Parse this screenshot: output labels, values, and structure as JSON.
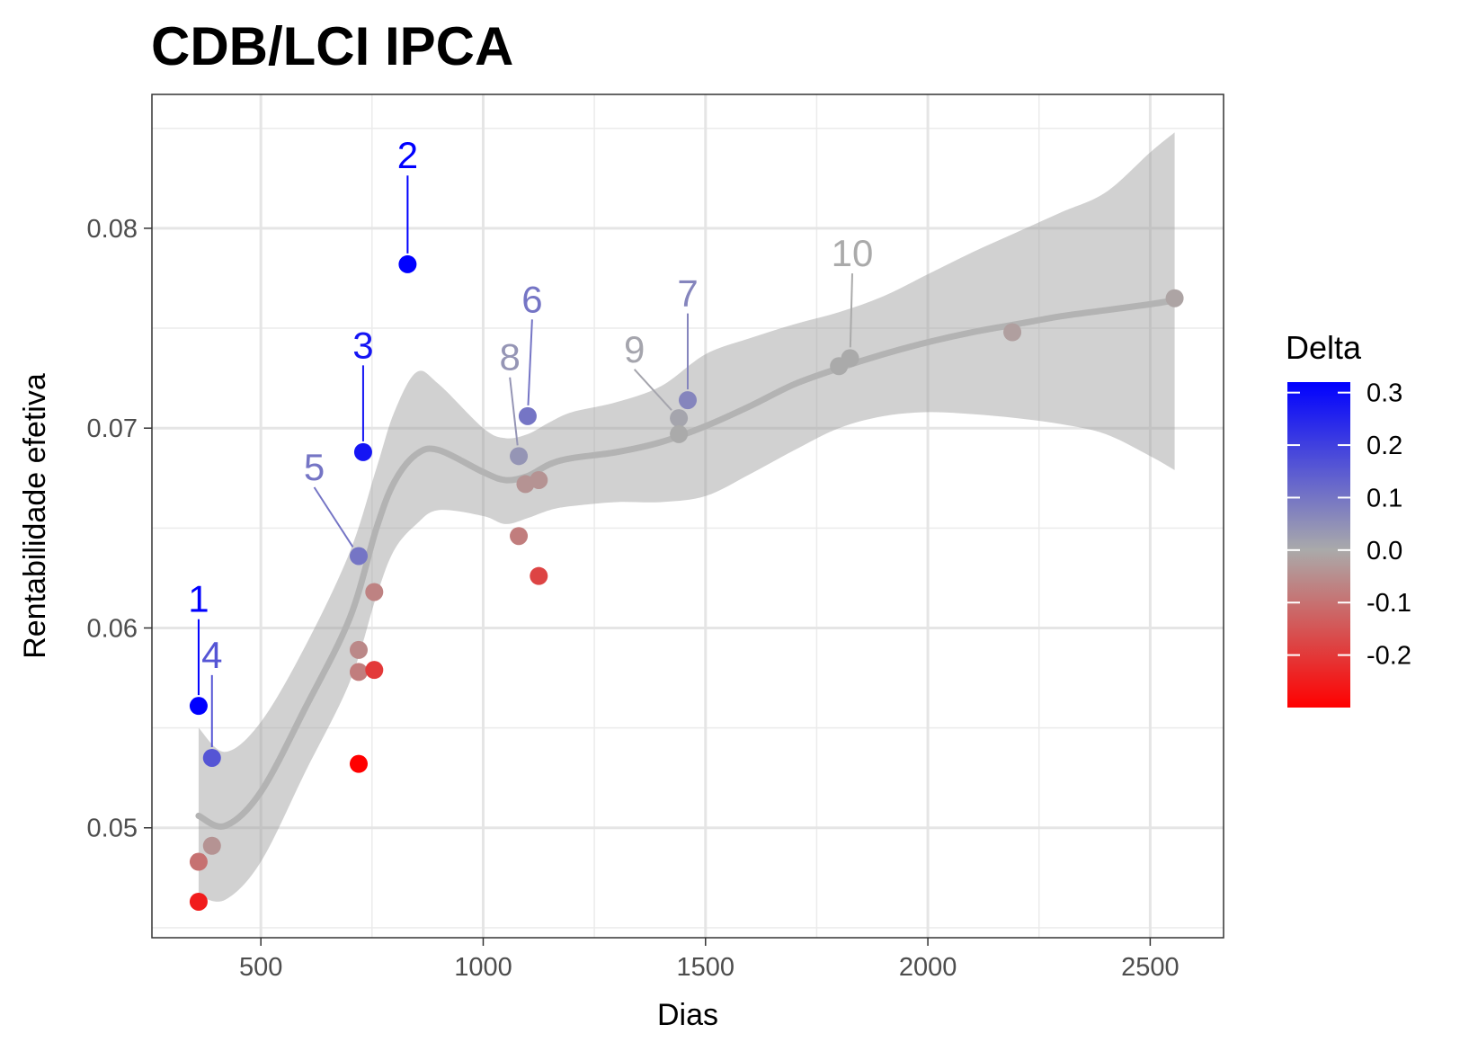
{
  "chart_data": {
    "type": "scatter",
    "title": "CDB/LCI IPCA",
    "xlabel": "Dias",
    "ylabel": "Rentabilidade efetiva",
    "xlim": [
      255,
      2665
    ],
    "ylim": [
      0.0445,
      0.0867
    ],
    "x_ticks": [
      500,
      1000,
      1500,
      2000,
      2500
    ],
    "y_ticks": [
      0.05,
      0.06,
      0.07,
      0.08
    ],
    "x_tick_labels": [
      "500",
      "1000",
      "1500",
      "2000",
      "2500"
    ],
    "y_tick_labels": [
      "0.05",
      "0.06",
      "0.07",
      "0.08"
    ],
    "grid": true,
    "legend": {
      "title": "Delta",
      "placement": "right",
      "range": [
        -0.3,
        0.32
      ],
      "ticks": [
        0.3,
        0.2,
        0.1,
        0.0,
        -0.1,
        -0.2
      ],
      "tick_labels": [
        "0.3",
        "0.2",
        "0.1",
        "0.0",
        "-0.1",
        "-0.2"
      ],
      "colors": {
        "low": "#ff0000",
        "mid": "#aaaaaa",
        "high": "#0000ff"
      }
    },
    "points": [
      {
        "x": 360,
        "y": 0.0561,
        "delta": 0.32
      },
      {
        "x": 830,
        "y": 0.0782,
        "delta": 0.32
      },
      {
        "x": 730,
        "y": 0.0688,
        "delta": 0.28
      },
      {
        "x": 390,
        "y": 0.0535,
        "delta": 0.16
      },
      {
        "x": 720,
        "y": 0.0636,
        "delta": 0.1
      },
      {
        "x": 1100,
        "y": 0.0706,
        "delta": 0.1
      },
      {
        "x": 1460,
        "y": 0.0714,
        "delta": 0.07
      },
      {
        "x": 1080,
        "y": 0.0686,
        "delta": 0.04
      },
      {
        "x": 1440,
        "y": 0.0705,
        "delta": 0.01
      },
      {
        "x": 1825,
        "y": 0.0735,
        "delta": 0.0
      },
      {
        "x": 1440,
        "y": 0.0697,
        "delta": 0.0
      },
      {
        "x": 1800,
        "y": 0.0731,
        "delta": 0.0
      },
      {
        "x": 2190,
        "y": 0.0748,
        "delta": -0.02
      },
      {
        "x": 2555,
        "y": 0.0765,
        "delta": -0.01
      },
      {
        "x": 1095,
        "y": 0.0672,
        "delta": -0.04
      },
      {
        "x": 1125,
        "y": 0.0674,
        "delta": -0.04
      },
      {
        "x": 1080,
        "y": 0.0646,
        "delta": -0.08
      },
      {
        "x": 1125,
        "y": 0.0626,
        "delta": -0.18
      },
      {
        "x": 755,
        "y": 0.0618,
        "delta": -0.07
      },
      {
        "x": 720,
        "y": 0.0589,
        "delta": -0.06
      },
      {
        "x": 720,
        "y": 0.0578,
        "delta": -0.08
      },
      {
        "x": 755,
        "y": 0.0579,
        "delta": -0.2
      },
      {
        "x": 720,
        "y": 0.0532,
        "delta": -0.3
      },
      {
        "x": 390,
        "y": 0.0491,
        "delta": -0.04
      },
      {
        "x": 360,
        "y": 0.0483,
        "delta": -0.1
      },
      {
        "x": 360,
        "y": 0.0463,
        "delta": -0.25
      }
    ],
    "labels": [
      {
        "text": "1",
        "point": 0,
        "lx": 360,
        "ly": 0.0608
      },
      {
        "text": "2",
        "point": 1,
        "lx": 830,
        "ly": 0.083
      },
      {
        "text": "3",
        "point": 2,
        "lx": 730,
        "ly": 0.0735
      },
      {
        "text": "4",
        "point": 3,
        "lx": 390,
        "ly": 0.058
      },
      {
        "text": "5",
        "point": 4,
        "lx": 620,
        "ly": 0.0674
      },
      {
        "text": "6",
        "point": 5,
        "lx": 1110,
        "ly": 0.0758
      },
      {
        "text": "7",
        "point": 6,
        "lx": 1460,
        "ly": 0.0761
      },
      {
        "text": "8",
        "point": 7,
        "lx": 1060,
        "ly": 0.0729
      },
      {
        "text": "9",
        "point": 8,
        "lx": 1340,
        "ly": 0.0733
      },
      {
        "text": "10",
        "point": 9,
        "lx": 1830,
        "ly": 0.0781
      }
    ],
    "smooth": {
      "x": [
        360,
        420,
        500,
        600,
        700,
        760,
        800,
        850,
        900,
        1000,
        1050,
        1100,
        1150,
        1200,
        1300,
        1400,
        1500,
        1600,
        1700,
        1800,
        1900,
        2000,
        2100,
        2200,
        2300,
        2400,
        2500,
        2555
      ],
      "y": [
        0.0506,
        0.0501,
        0.0518,
        0.056,
        0.0605,
        0.065,
        0.0673,
        0.0687,
        0.0689,
        0.0678,
        0.0674,
        0.0676,
        0.0682,
        0.0685,
        0.0688,
        0.0693,
        0.0701,
        0.0711,
        0.0722,
        0.073,
        0.0737,
        0.0743,
        0.0748,
        0.0752,
        0.0756,
        0.0759,
        0.0762,
        0.0764
      ],
      "upper": [
        0.055,
        0.0538,
        0.0553,
        0.0591,
        0.0638,
        0.068,
        0.0708,
        0.0728,
        0.0722,
        0.07,
        0.0695,
        0.0697,
        0.0703,
        0.0708,
        0.0713,
        0.0721,
        0.0737,
        0.0745,
        0.0752,
        0.0758,
        0.0766,
        0.0777,
        0.0788,
        0.0798,
        0.0808,
        0.0818,
        0.0838,
        0.0848
      ],
      "lower": [
        0.0466,
        0.0464,
        0.0483,
        0.0528,
        0.0573,
        0.0616,
        0.0639,
        0.0652,
        0.0659,
        0.0656,
        0.0652,
        0.0655,
        0.0659,
        0.0661,
        0.0663,
        0.0663,
        0.0666,
        0.0677,
        0.0689,
        0.07,
        0.0706,
        0.0708,
        0.0707,
        0.0705,
        0.0702,
        0.0697,
        0.0686,
        0.0679
      ]
    }
  }
}
